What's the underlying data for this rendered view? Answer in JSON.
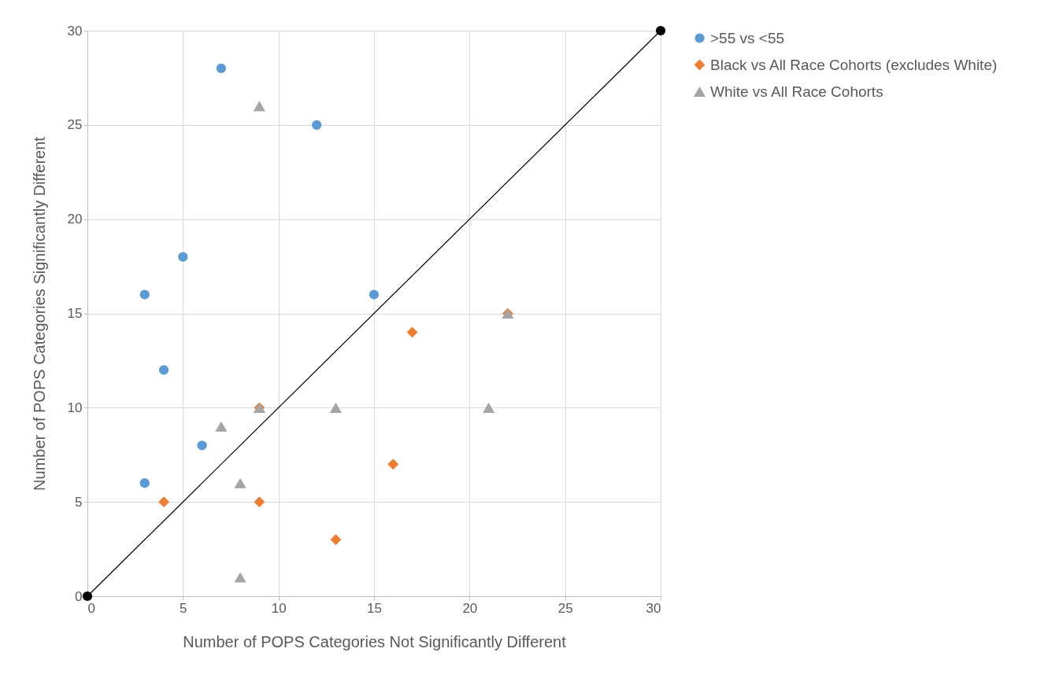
{
  "chart_data": {
    "type": "scatter",
    "xlabel": "Number of POPS Categories Not Significantly Different",
    "ylabel": "Number of POPS Categories Significantly Different",
    "xlim": [
      0,
      30
    ],
    "ylim": [
      0,
      30
    ],
    "xticks": [
      0,
      5,
      10,
      15,
      20,
      25,
      30
    ],
    "yticks": [
      0,
      5,
      10,
      15,
      20,
      25,
      30
    ],
    "grid": true,
    "legend": "top right",
    "series": [
      {
        "name": ">55 vs <55",
        "color": "#5b9bd5",
        "marker": "circle",
        "x": [
          7,
          12,
          5,
          3,
          15,
          4,
          6,
          3
        ],
        "values": [
          28,
          25,
          18,
          16,
          16,
          12,
          8,
          6
        ]
      },
      {
        "name": "Black vs All Race Cohorts (excludes White)",
        "color": "#ed7d31",
        "marker": "diamond",
        "x": [
          22,
          17,
          9,
          16,
          4,
          9,
          13
        ],
        "values": [
          15,
          14,
          10,
          7,
          5,
          5,
          3
        ]
      },
      {
        "name": "White vs All Race Cohorts",
        "color": "#a5a5a5",
        "marker": "triangle",
        "x": [
          9,
          22,
          7,
          9,
          13,
          21,
          8,
          8
        ],
        "values": [
          26,
          15,
          9,
          10,
          10,
          10,
          6,
          1
        ]
      },
      {
        "type": "line",
        "color": "#000000",
        "marker": "circle",
        "line_style": "solid",
        "x": [
          0,
          30
        ],
        "values": [
          0,
          30
        ]
      }
    ]
  }
}
